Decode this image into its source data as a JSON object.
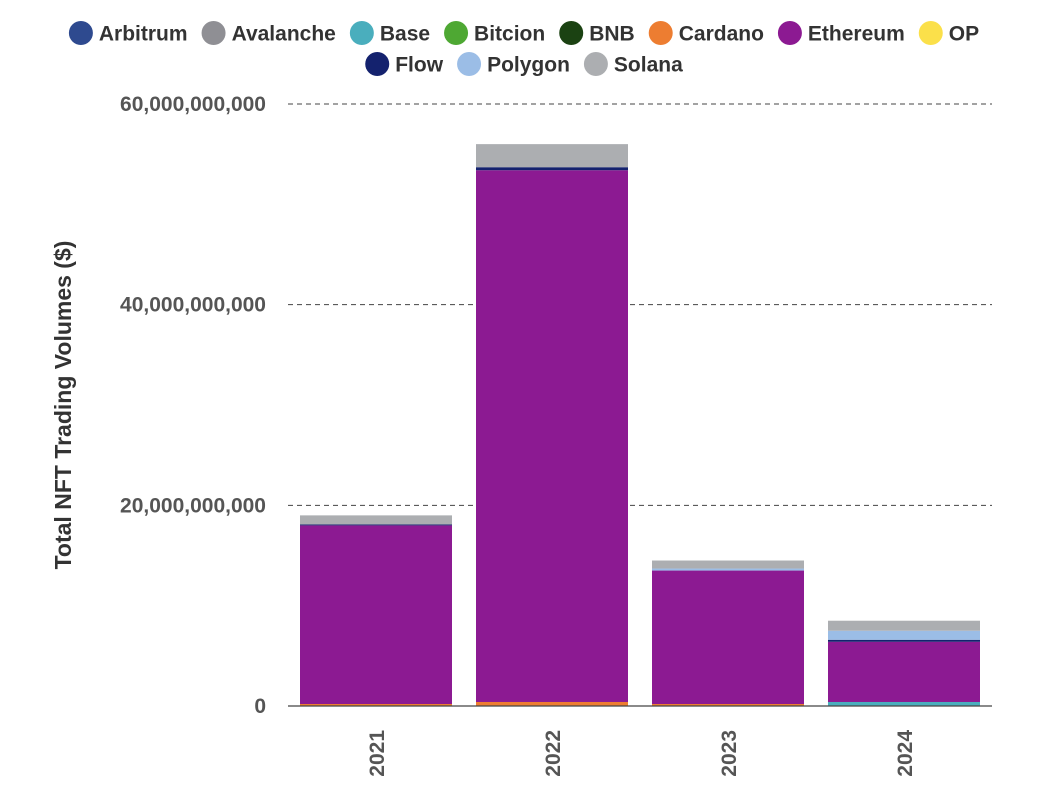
{
  "chart_data": {
    "type": "bar",
    "stacked": true,
    "title": "",
    "xlabel": "",
    "ylabel": "Total NFT Trading Volumes ($)",
    "categories": [
      "2021",
      "2022",
      "2023",
      "2024"
    ],
    "ylim": [
      0,
      60000000000
    ],
    "yticks": [
      0,
      20000000000,
      40000000000,
      60000000000
    ],
    "ytick_labels": [
      "0",
      "20,000,000,000",
      "40,000,000,000",
      "60,000,000,000"
    ],
    "grid": true,
    "legend_position": "top-center",
    "series": [
      {
        "name": "Arbitrum",
        "color": "#2e4a8f",
        "values": [
          0,
          0,
          0,
          0
        ]
      },
      {
        "name": "Avalanche",
        "color": "#8f8f94",
        "values": [
          0,
          0,
          0,
          0
        ]
      },
      {
        "name": "Base",
        "color": "#4aaebd",
        "values": [
          0,
          0,
          0,
          400000000
        ]
      },
      {
        "name": "Bitcion",
        "color": "#4ea833",
        "values": [
          0,
          0,
          0,
          0
        ]
      },
      {
        "name": "BNB",
        "color": "#1b4212",
        "values": [
          0,
          0,
          0,
          0
        ]
      },
      {
        "name": "Cardano",
        "color": "#ed7d31",
        "values": [
          200000000,
          400000000,
          200000000,
          0
        ]
      },
      {
        "name": "Ethereum",
        "color": "#8c1a92",
        "values": [
          17800000000,
          53000000000,
          13300000000,
          6000000000
        ]
      },
      {
        "name": "OP",
        "color": "#fbe04a",
        "values": [
          0,
          0,
          0,
          0
        ]
      },
      {
        "name": "Flow",
        "color": "#14226e",
        "values": [
          100000000,
          300000000,
          0,
          200000000
        ]
      },
      {
        "name": "Polygon",
        "color": "#9bbde6",
        "values": [
          0,
          0,
          200000000,
          900000000
        ]
      },
      {
        "name": "Solana",
        "color": "#acaeb1",
        "values": [
          900000000,
          2300000000,
          800000000,
          1000000000
        ]
      }
    ]
  }
}
